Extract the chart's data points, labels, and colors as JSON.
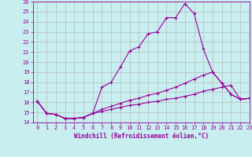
{
  "xlabel": "Windchill (Refroidissement éolien,°C)",
  "background_color": "#c8eef0",
  "grid_color": "#b0b0b0",
  "line_color": "#990099",
  "line1_x": [
    0,
    1,
    2,
    3,
    4,
    5,
    6,
    7,
    8,
    9,
    10,
    11,
    12,
    13,
    14,
    15,
    16,
    17,
    18,
    19,
    20,
    21,
    22,
    23
  ],
  "line1_y": [
    16.1,
    14.9,
    14.8,
    14.4,
    14.4,
    14.5,
    14.9,
    17.5,
    18.0,
    19.5,
    21.1,
    21.5,
    22.8,
    23.0,
    24.4,
    24.4,
    25.8,
    24.8,
    21.3,
    19.0,
    17.9,
    16.8,
    16.3,
    16.4
  ],
  "line2_x": [
    0,
    1,
    2,
    3,
    4,
    5,
    6,
    7,
    8,
    9,
    10,
    11,
    12,
    13,
    14,
    15,
    16,
    17,
    18,
    19,
    20,
    21,
    22,
    23
  ],
  "line2_y": [
    16.1,
    14.9,
    14.8,
    14.4,
    14.4,
    14.5,
    14.9,
    15.3,
    15.6,
    15.9,
    16.2,
    16.4,
    16.7,
    16.9,
    17.2,
    17.5,
    17.9,
    18.3,
    18.7,
    19.0,
    17.9,
    16.8,
    16.3,
    16.4
  ],
  "line3_x": [
    0,
    1,
    2,
    3,
    4,
    5,
    6,
    7,
    8,
    9,
    10,
    11,
    12,
    13,
    14,
    15,
    16,
    17,
    18,
    19,
    20,
    21,
    22,
    23
  ],
  "line3_y": [
    16.1,
    14.9,
    14.8,
    14.4,
    14.4,
    14.5,
    14.9,
    15.1,
    15.3,
    15.5,
    15.7,
    15.8,
    16.0,
    16.1,
    16.3,
    16.4,
    16.6,
    16.8,
    17.1,
    17.3,
    17.5,
    17.7,
    16.3,
    16.4
  ],
  "ylim": [
    14,
    26
  ],
  "xlim": [
    -0.5,
    23
  ],
  "yticks": [
    14,
    15,
    16,
    17,
    18,
    19,
    20,
    21,
    22,
    23,
    24,
    25,
    26
  ],
  "xticks": [
    0,
    1,
    2,
    3,
    4,
    5,
    6,
    7,
    8,
    9,
    10,
    11,
    12,
    13,
    14,
    15,
    16,
    17,
    18,
    19,
    20,
    21,
    22,
    23
  ],
  "tick_fontsize": 5.0,
  "label_fontsize": 5.5
}
